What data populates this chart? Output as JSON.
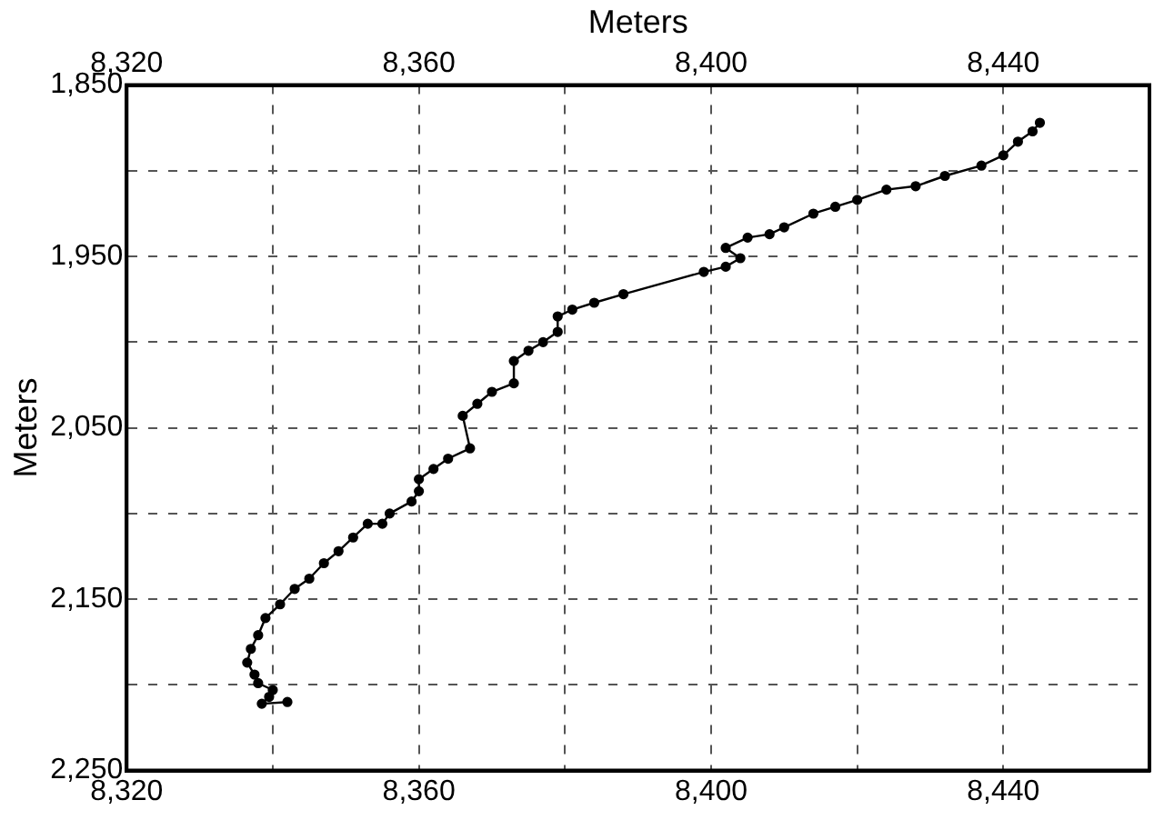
{
  "chart_data": {
    "type": "line",
    "x2label": "Meters",
    "ylabel": "Meters",
    "marker": "circle",
    "line_style": "solid",
    "grid": true,
    "legend": false,
    "xlim": [
      8320,
      8460
    ],
    "xticks": [
      {
        "value": 8320,
        "label": "8,320"
      },
      {
        "value": 8340,
        "label": null
      },
      {
        "value": 8360,
        "label": "8,360"
      },
      {
        "value": 8380,
        "label": null
      },
      {
        "value": 8400,
        "label": "8,400"
      },
      {
        "value": 8420,
        "label": null
      },
      {
        "value": 8440,
        "label": "8,440"
      }
    ],
    "x2lim": [
      8320,
      8460
    ],
    "x2ticks": [
      {
        "value": 8320,
        "label": "8,320"
      },
      {
        "value": 8340,
        "label": null
      },
      {
        "value": 8360,
        "label": "8,360"
      },
      {
        "value": 8380,
        "label": null
      },
      {
        "value": 8400,
        "label": "8,400"
      },
      {
        "value": 8420,
        "label": null
      },
      {
        "value": 8440,
        "label": "8,440"
      }
    ],
    "ylim": [
      2250,
      1850
    ],
    "yticks": [
      {
        "value": 1850,
        "label": "1,850"
      },
      {
        "value": 1900,
        "label": null
      },
      {
        "value": 1950,
        "label": "1,950"
      },
      {
        "value": 2000,
        "label": null
      },
      {
        "value": 2050,
        "label": "2,050"
      },
      {
        "value": 2100,
        "label": null
      },
      {
        "value": 2150,
        "label": "2,150"
      },
      {
        "value": 2200,
        "label": null
      },
      {
        "value": 2250,
        "label": "2,250"
      }
    ],
    "series": [
      {
        "color": "#000000",
        "x": [
          8342,
          8338.5,
          8339.5,
          8340,
          8338,
          8337.5,
          8336.5,
          8337,
          8338,
          8339,
          8341,
          8343,
          8345,
          8347,
          8349,
          8351,
          8353,
          8355,
          8356,
          8359,
          8360,
          8360,
          8362,
          8364,
          8367,
          8366,
          8368,
          8370,
          8373,
          8373,
          8375,
          8377,
          8379,
          8379,
          8381,
          8384,
          8388,
          8399,
          8402,
          8404,
          8402,
          8405,
          8408,
          8410,
          8414,
          8417,
          8420,
          8424,
          8428,
          8432,
          8437,
          8440,
          8442,
          8444,
          8445
        ],
        "values": [
          2210,
          2211,
          2207,
          2203,
          2199,
          2194,
          2187,
          2179,
          2171,
          2161,
          2153,
          2144,
          2138,
          2129,
          2122,
          2114,
          2106,
          2106,
          2100,
          2093,
          2087,
          2080,
          2074,
          2068,
          2062,
          2043,
          2036,
          2029,
          2024,
          2011,
          2005,
          2000,
          1994,
          1985,
          1981,
          1977,
          1972,
          1959,
          1956,
          1951,
          1945,
          1939,
          1937,
          1933,
          1925,
          1921,
          1917,
          1911,
          1909,
          1903,
          1897,
          1891,
          1883,
          1877,
          1872
        ]
      }
    ]
  }
}
